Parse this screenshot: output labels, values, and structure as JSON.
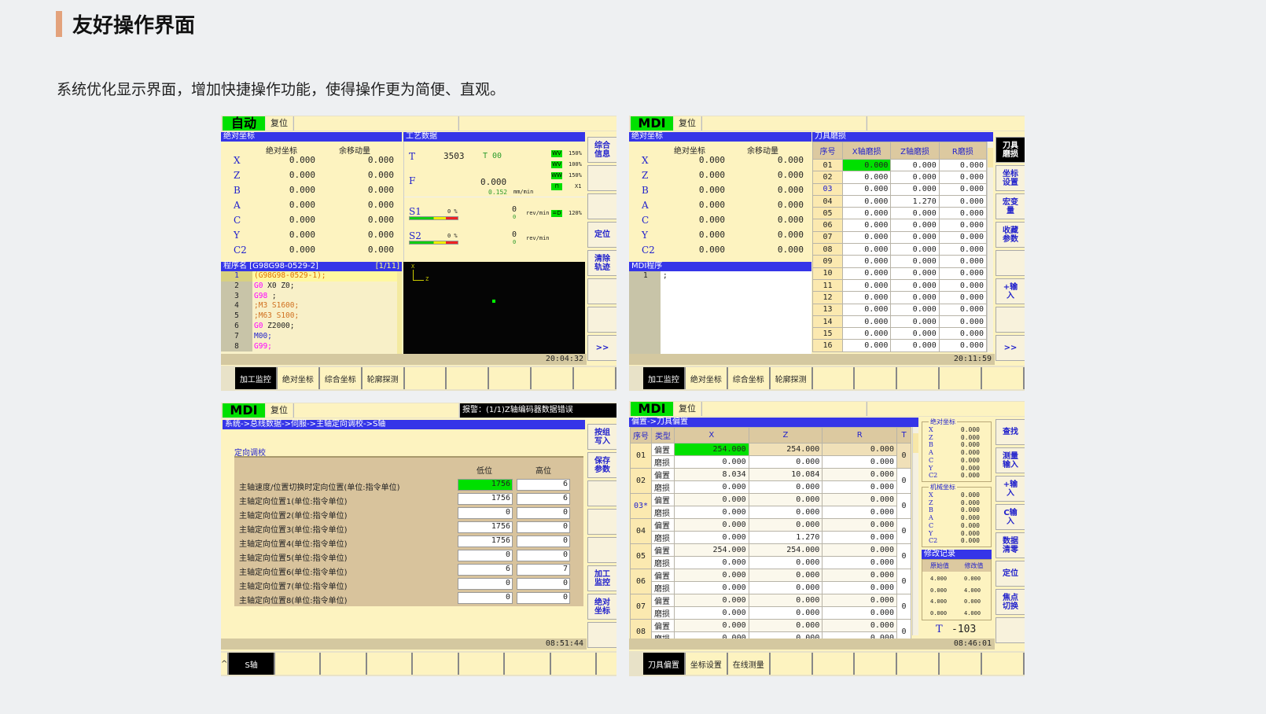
{
  "header": {
    "title": "友好操作界面",
    "subtitle": "系统优化显示界面，增加快捷操作功能，使得操作更为简便、直观。"
  },
  "colors": {
    "accent_bar": "#e3a27c",
    "mode_green": "#00e000",
    "title_blue": "#3535e8",
    "screen_yellow": "#fdf3c0"
  },
  "panel1": {
    "mode": "自动",
    "reset": "复位",
    "coord": {
      "title": "绝对坐标",
      "headers": [
        "绝对坐标",
        "余移动量"
      ],
      "rows": [
        {
          "axis": "X",
          "abs": "0.000",
          "remain": "0.000"
        },
        {
          "axis": "Z",
          "abs": "0.000",
          "remain": "0.000"
        },
        {
          "axis": "B",
          "abs": "0.000",
          "remain": "0.000"
        },
        {
          "axis": "A",
          "abs": "0.000",
          "remain": "0.000"
        },
        {
          "axis": "C",
          "abs": "0.000",
          "remain": "0.000"
        },
        {
          "axis": "Y",
          "abs": "0.000",
          "remain": "0.000"
        },
        {
          "axis": "C2",
          "abs": "0.000",
          "remain": "0.000"
        }
      ]
    },
    "process": {
      "title": "工艺数据",
      "t_label": "T",
      "t_value": "3503",
      "t_tool": "T 00",
      "f_label": "F",
      "f_value": "0.000",
      "f_actual": "0.152",
      "f_unit": "mm/min",
      "overrides": [
        "150%",
        "100%",
        "150%",
        "X1"
      ],
      "s1": {
        "label": "S1",
        "pct": "0 %",
        "value": "0",
        "actual": "0",
        "unit": "rev/min",
        "override": "120%"
      },
      "s2": {
        "label": "S2",
        "pct": "0 %",
        "value": "0",
        "actual": "0",
        "unit": "rev/min"
      }
    },
    "program": {
      "title": "程序名 [G98G98-0529-2]",
      "page": "[1/11]",
      "lines": [
        {
          "n": "1",
          "seg": [
            {
              "t": "(G98G98-0529-1);",
              "c": "#e07000"
            }
          ]
        },
        {
          "n": "2",
          "seg": [
            {
              "t": "G0",
              "c": "#ff00ff"
            },
            {
              "t": " X0 Z0;",
              "c": "#222"
            }
          ]
        },
        {
          "n": "3",
          "seg": [
            {
              "t": "G98",
              "c": "#ff00ff"
            },
            {
              "t": " ;",
              "c": "#222"
            }
          ]
        },
        {
          "n": "4",
          "seg": [
            {
              "t": ";M3 S1600;",
              "c": "#d07020"
            }
          ]
        },
        {
          "n": "5",
          "seg": [
            {
              "t": ";M63 S100;",
              "c": "#d07020"
            }
          ]
        },
        {
          "n": "6",
          "seg": [
            {
              "t": "G0",
              "c": "#ff00ff"
            },
            {
              "t": " Z2000;",
              "c": "#222"
            }
          ]
        },
        {
          "n": "7",
          "seg": [
            {
              "t": "M00;",
              "c": "#2222cc"
            }
          ]
        },
        {
          "n": "8",
          "seg": [
            {
              "t": "G99;",
              "c": "#ff00ff"
            }
          ]
        }
      ]
    },
    "graph": {
      "x_axis": "X",
      "z_axis": "Z"
    },
    "time": "20:04:32",
    "side_buttons": [
      "综合信息",
      "",
      "",
      "定位",
      "清除轨迹",
      "",
      "",
      ">>"
    ],
    "tabs": [
      "加工监控",
      "绝对坐标",
      "综合坐标",
      "轮廓探测",
      "",
      "",
      "",
      "",
      ""
    ]
  },
  "panel2": {
    "mode": "MDI",
    "reset": "复位",
    "coord": {
      "title": "绝对坐标",
      "headers": [
        "绝对坐标",
        "余移动量"
      ],
      "rows": [
        {
          "axis": "X",
          "abs": "0.000",
          "remain": "0.000"
        },
        {
          "axis": "Z",
          "abs": "0.000",
          "remain": "0.000"
        },
        {
          "axis": "B",
          "abs": "0.000",
          "remain": "0.000"
        },
        {
          "axis": "A",
          "abs": "0.000",
          "remain": "0.000"
        },
        {
          "axis": "C",
          "abs": "0.000",
          "remain": "0.000"
        },
        {
          "axis": "Y",
          "abs": "0.000",
          "remain": "0.000"
        },
        {
          "axis": "C2",
          "abs": "0.000",
          "remain": "0.000"
        }
      ]
    },
    "wear": {
      "title": "刀具磨损",
      "headers": [
        "序号",
        "X轴磨损",
        "Z轴磨损",
        "R磨损"
      ],
      "rows": [
        [
          "01",
          "0.000",
          "0.000",
          "0.000"
        ],
        [
          "02",
          "0.000",
          "0.000",
          "0.000"
        ],
        [
          "03",
          "0.000",
          "0.000",
          "0.000"
        ],
        [
          "04",
          "0.000",
          "1.270",
          "0.000"
        ],
        [
          "05",
          "0.000",
          "0.000",
          "0.000"
        ],
        [
          "06",
          "0.000",
          "0.000",
          "0.000"
        ],
        [
          "07",
          "0.000",
          "0.000",
          "0.000"
        ],
        [
          "08",
          "0.000",
          "0.000",
          "0.000"
        ],
        [
          "09",
          "0.000",
          "0.000",
          "0.000"
        ],
        [
          "10",
          "0.000",
          "0.000",
          "0.000"
        ],
        [
          "11",
          "0.000",
          "0.000",
          "0.000"
        ],
        [
          "12",
          "0.000",
          "0.000",
          "0.000"
        ],
        [
          "13",
          "0.000",
          "0.000",
          "0.000"
        ],
        [
          "14",
          "0.000",
          "0.000",
          "0.000"
        ],
        [
          "15",
          "0.000",
          "0.000",
          "0.000"
        ],
        [
          "16",
          "0.000",
          "0.000",
          "0.000"
        ]
      ]
    },
    "program": {
      "title": "MDI程序",
      "lines": [
        {
          "n": "1",
          "code": ";"
        }
      ]
    },
    "time": "20:11:59",
    "side_buttons": [
      "刀具磨损",
      "坐标设置",
      "宏变量",
      "收藏参数",
      "",
      "+输入",
      "",
      ">>"
    ],
    "tabs": [
      "加工监控",
      "绝对坐标",
      "综合坐标",
      "轮廓探测",
      "",
      "",
      "",
      "",
      ""
    ]
  },
  "panel3": {
    "mode": "MDI",
    "reset": "复位",
    "alarm": "报警：(1/1)Z轴编码器数据错误",
    "breadcrumb": "系统->总线数据->伺服->主轴定向调校->S轴",
    "section": "定向调校",
    "headers": [
      "低位",
      "高位"
    ],
    "rows": [
      [
        "主轴速度/位置切换时定向位置(单位:指令单位)",
        "1756",
        "6"
      ],
      [
        "主轴定向位置1(单位:指令单位)",
        "1756",
        "6"
      ],
      [
        "主轴定向位置2(单位:指令单位)",
        "0",
        "0"
      ],
      [
        "主轴定向位置3(单位:指令单位)",
        "1756",
        "0"
      ],
      [
        "主轴定向位置4(单位:指令单位)",
        "1756",
        "0"
      ],
      [
        "主轴定向位置5(单位:指令单位)",
        "0",
        "0"
      ],
      [
        "主轴定向位置6(单位:指令单位)",
        "6",
        "7"
      ],
      [
        "主轴定向位置7(单位:指令单位)",
        "0",
        "0"
      ],
      [
        "主轴定向位置8(单位:指令单位)",
        "0",
        "0"
      ]
    ],
    "time": "08:51:44",
    "side_buttons": [
      "按组写入",
      "保存参数",
      "",
      "",
      "",
      "加工监控",
      "绝对坐标",
      ""
    ],
    "tabs": [
      "S轴",
      "",
      "",
      "",
      "",
      "",
      "",
      "",
      ""
    ],
    "up_label": "^"
  },
  "panel4": {
    "mode": "MDI",
    "reset": "复位",
    "breadcrumb": "偏置->刀具偏置",
    "headers": [
      "序号",
      "类型",
      "X",
      "Z",
      "R",
      "T"
    ],
    "type_offset": "偏置",
    "type_wear": "磨损",
    "tools": [
      {
        "no": "01",
        "offset": [
          "254.000",
          "254.000",
          "0.000"
        ],
        "wear": [
          "0.000",
          "0.000",
          "0.000"
        ],
        "t": "0"
      },
      {
        "no": "02",
        "offset": [
          "8.034",
          "10.084",
          "0.000"
        ],
        "wear": [
          "0.000",
          "0.000",
          "0.000"
        ],
        "t": "0"
      },
      {
        "no": "03*",
        "offset": [
          "0.000",
          "0.000",
          "0.000"
        ],
        "wear": [
          "0.000",
          "0.000",
          "0.000"
        ],
        "t": "0"
      },
      {
        "no": "04",
        "offset": [
          "0.000",
          "0.000",
          "0.000"
        ],
        "wear": [
          "0.000",
          "1.270",
          "0.000"
        ],
        "t": "0"
      },
      {
        "no": "05",
        "offset": [
          "254.000",
          "254.000",
          "0.000"
        ],
        "wear": [
          "0.000",
          "0.000",
          "0.000"
        ],
        "t": "0"
      },
      {
        "no": "06",
        "offset": [
          "0.000",
          "0.000",
          "0.000"
        ],
        "wear": [
          "0.000",
          "0.000",
          "0.000"
        ],
        "t": "0"
      },
      {
        "no": "07",
        "offset": [
          "0.000",
          "0.000",
          "0.000"
        ],
        "wear": [
          "0.000",
          "0.000",
          "0.000"
        ],
        "t": "0"
      },
      {
        "no": "08",
        "offset": [
          "0.000",
          "0.000",
          "0.000"
        ],
        "wear": [
          "0.000",
          "0.000",
          "0.000"
        ],
        "t": "0"
      }
    ],
    "abs_coord": {
      "title": "绝对坐标",
      "rows": [
        [
          "X",
          "0.000"
        ],
        [
          "Z",
          "0.000"
        ],
        [
          "B",
          "0.000"
        ],
        [
          "A",
          "0.000"
        ],
        [
          "C",
          "0.000"
        ],
        [
          "Y",
          "0.000"
        ],
        [
          "C2",
          "0.000"
        ]
      ]
    },
    "mach_coord": {
      "title": "机械坐标",
      "rows": [
        [
          "X",
          "0.000"
        ],
        [
          "Z",
          "0.000"
        ],
        [
          "B",
          "0.000"
        ],
        [
          "A",
          "0.000"
        ],
        [
          "C",
          "0.000"
        ],
        [
          "Y",
          "0.000"
        ],
        [
          "C2",
          "0.000"
        ]
      ]
    },
    "history": {
      "title": "修改记录",
      "headers": [
        "原始值",
        "修改值"
      ],
      "rows": [
        [
          "4.000",
          "0.000"
        ],
        [
          "0.000",
          "4.000"
        ],
        [
          "4.000",
          "0.000"
        ],
        [
          "0.000",
          "4.000"
        ]
      ]
    },
    "t_label": "T",
    "t_value": "-103",
    "time": "08:46:01",
    "side_buttons": [
      "查找",
      "测量输入",
      "+输入",
      "C输入",
      "数据清零",
      "定位",
      "焦点切换",
      ""
    ],
    "tabs": [
      "刀具偏置",
      "坐标设置",
      "在线测量",
      "",
      "",
      "",
      "",
      "",
      ""
    ]
  }
}
